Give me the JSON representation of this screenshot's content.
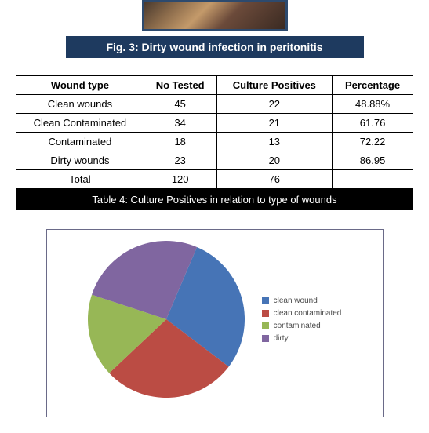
{
  "figure": {
    "caption": "Fig. 3: Dirty wound infection in peritonitis",
    "caption_bg": "#1e3a5f",
    "caption_color": "#ffffff"
  },
  "table": {
    "columns": [
      "Wound type",
      "No Tested",
      "Culture Positives",
      "Percentage"
    ],
    "rows": [
      [
        "Clean wounds",
        "45",
        "22",
        "48.88%"
      ],
      [
        "Clean Contaminated",
        "34",
        "21",
        "61.76"
      ],
      [
        "Contaminated",
        "18",
        "13",
        "72.22"
      ],
      [
        "Dirty wounds",
        "23",
        "20",
        "86.95"
      ],
      [
        "Total",
        "120",
        "76",
        ""
      ]
    ],
    "caption": "Table 4: Culture Positives in relation to type of wounds",
    "caption_bg": "#000000",
    "caption_color": "#ffffff"
  },
  "pie": {
    "type": "pie",
    "size": 200,
    "background_color": "#ffffff",
    "border_color": "#6a6a88",
    "slices": [
      {
        "label": "clean wound",
        "value": 22,
        "color": "#4674b6"
      },
      {
        "label": "clean contaminated",
        "value": 21,
        "color": "#bb4c44"
      },
      {
        "label": "contaminated",
        "value": 13,
        "color": "#97b756"
      },
      {
        "label": "dirty",
        "value": 20,
        "color": "#8066a0"
      }
    ],
    "legend_fontsize": 10,
    "legend_color": "#4a4a4a",
    "start_angle_deg": -67
  }
}
